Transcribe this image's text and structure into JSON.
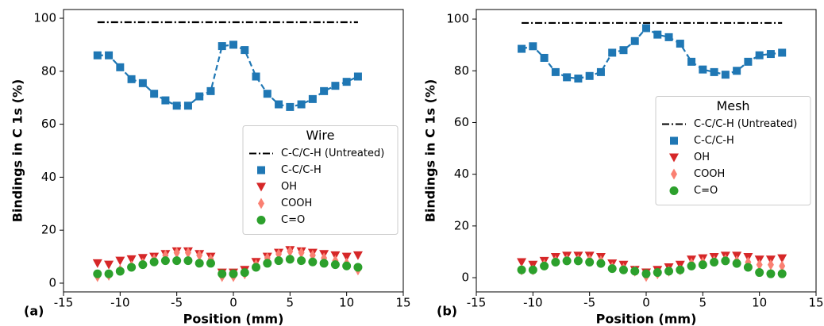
{
  "chart_data": [
    {
      "type": "scatter",
      "panel_label": "(a)",
      "xlabel": "Position (mm)",
      "ylabel": "Bindings in C 1s (%)",
      "legend_title": "Wire",
      "legend": "center right",
      "xlim": [
        -15,
        15
      ],
      "xticks": [
        -15,
        -10,
        -5,
        0,
        5,
        10,
        15
      ],
      "ylim": [
        -3.3,
        103.3
      ],
      "yticks": [
        0,
        20,
        40,
        60,
        80,
        100
      ],
      "x": [
        -12,
        -11,
        -10,
        -9,
        -8,
        -7,
        -6,
        -5,
        -4,
        -3,
        -2,
        -1,
        0,
        1,
        2,
        3,
        4,
        5,
        6,
        7,
        8,
        9,
        10,
        11
      ],
      "series": [
        {
          "name": "C-C/C-H (Untreated)",
          "color": "#000000",
          "line": "dashdot",
          "marker": "none",
          "values": [
            98.5,
            98.5,
            98.5,
            98.5,
            98.5,
            98.5,
            98.5,
            98.5,
            98.5,
            98.5,
            98.5,
            98.5,
            98.5,
            98.5,
            98.5,
            98.5,
            98.5,
            98.5,
            98.5,
            98.5,
            98.5,
            98.5,
            98.5,
            98.5
          ]
        },
        {
          "name": "C-C/C-H",
          "color": "#1f77b4",
          "line": "dashed",
          "marker": "square",
          "values": [
            86,
            86,
            81.5,
            77,
            75.5,
            71.5,
            69,
            67,
            67,
            70.5,
            72.5,
            89.5,
            90,
            88,
            78,
            71.5,
            67.5,
            66.5,
            67.5,
            69.5,
            72.5,
            74.5,
            76,
            78
          ]
        },
        {
          "name": "OH",
          "color": "#d62728",
          "line": "none",
          "marker": "triangle-down",
          "values": [
            7.5,
            7,
            8.5,
            9,
            9.5,
            10,
            11,
            12,
            12,
            11,
            10,
            4,
            4,
            5,
            8,
            10,
            11.5,
            12.5,
            12,
            11.5,
            11,
            10.5,
            10,
            10.5
          ]
        },
        {
          "name": "COOH",
          "color": "#fa8072",
          "line": "none",
          "marker": "thin-diamond",
          "values": [
            2.5,
            3,
            5,
            6.5,
            7.5,
            9,
            10.5,
            11.5,
            11.5,
            10.5,
            9,
            2.5,
            2.5,
            3.5,
            7,
            9.5,
            11,
            12,
            11.5,
            10.5,
            9.5,
            8.5,
            7.5,
            5
          ]
        },
        {
          "name": "C=O",
          "color": "#2ca02c",
          "line": "none",
          "marker": "circle",
          "values": [
            3.5,
            3.5,
            4.5,
            6,
            7,
            8,
            8.5,
            8.5,
            8.5,
            7.5,
            7.5,
            3.5,
            3.5,
            4,
            6,
            7.5,
            8.5,
            9,
            8.5,
            8,
            7.5,
            7,
            6.5,
            6
          ]
        }
      ]
    },
    {
      "type": "scatter",
      "panel_label": "(b)",
      "xlabel": "Position (mm)",
      "ylabel": "Bindings in C 1s (%)",
      "legend_title": "Mesh",
      "legend": "center right",
      "xlim": [
        -15,
        15
      ],
      "xticks": [
        -15,
        -10,
        -5,
        0,
        5,
        10,
        15
      ],
      "ylim": [
        -5.5,
        103.7
      ],
      "yticks": [
        0,
        20,
        40,
        60,
        80,
        100
      ],
      "x": [
        -11,
        -10,
        -9,
        -8,
        -7,
        -6,
        -5,
        -4,
        -3,
        -2,
        -1,
        0,
        1,
        2,
        3,
        4,
        5,
        6,
        7,
        8,
        9,
        10,
        11,
        12
      ],
      "series": [
        {
          "name": "C-C/C-H (Untreated)",
          "color": "#000000",
          "line": "dashdot",
          "marker": "none",
          "values": [
            98.5,
            98.5,
            98.5,
            98.5,
            98.5,
            98.5,
            98.5,
            98.5,
            98.5,
            98.5,
            98.5,
            98.5,
            98.5,
            98.5,
            98.5,
            98.5,
            98.5,
            98.5,
            98.5,
            98.5,
            98.5,
            98.5,
            98.5,
            98.5
          ]
        },
        {
          "name": "C-C/C-H",
          "color": "#1f77b4",
          "line": "dashed",
          "marker": "square",
          "values": [
            88.5,
            89.5,
            85,
            79.5,
            77.5,
            77,
            78,
            79.5,
            87,
            88,
            91.5,
            96.5,
            94,
            93,
            90.5,
            83.5,
            80.5,
            79.5,
            78.5,
            80,
            83.5,
            86,
            86.5,
            87
          ]
        },
        {
          "name": "OH",
          "color": "#d62728",
          "line": "none",
          "marker": "triangle-down",
          "values": [
            6,
            5,
            6.5,
            8,
            8.5,
            8.5,
            8.5,
            8,
            5.5,
            5,
            3,
            2,
            3,
            4,
            5,
            7,
            7.5,
            8,
            8.5,
            8.5,
            8,
            7,
            7,
            7.5
          ]
        },
        {
          "name": "COOH",
          "color": "#fa8072",
          "line": "none",
          "marker": "thin-diamond",
          "values": [
            3,
            3,
            5,
            6.5,
            7,
            7,
            7,
            6.5,
            4,
            3.5,
            2.5,
            0.5,
            1.5,
            2.5,
            3,
            5.5,
            6,
            6.5,
            7,
            6.5,
            6,
            5,
            5,
            4.5
          ]
        },
        {
          "name": "C=O",
          "color": "#2ca02c",
          "line": "none",
          "marker": "circle",
          "values": [
            3,
            3,
            4.5,
            6,
            6.5,
            6.5,
            6,
            5.5,
            3.5,
            3,
            2.5,
            1.5,
            2,
            2.5,
            3,
            4.5,
            5,
            6,
            6.5,
            5.5,
            4,
            2,
            1.5,
            1.5
          ]
        }
      ]
    }
  ]
}
